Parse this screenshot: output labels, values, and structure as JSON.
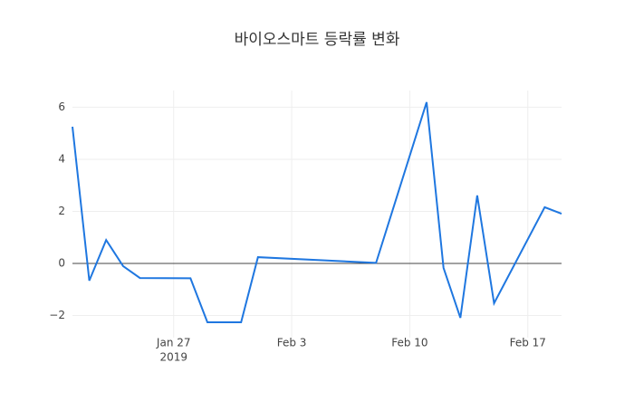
{
  "chart_data": {
    "type": "line",
    "title": "바이오스마트 등락률 변화",
    "x": [
      "2019-01-21",
      "2019-01-22",
      "2019-01-23",
      "2019-01-24",
      "2019-01-25",
      "2019-01-28",
      "2019-01-29",
      "2019-01-31",
      "2019-02-01",
      "2019-02-08",
      "2019-02-11",
      "2019-02-12",
      "2019-02-13",
      "2019-02-14",
      "2019-02-15",
      "2019-02-18",
      "2019-02-19"
    ],
    "series": [
      {
        "name": "등락률",
        "color": "#1f77e0",
        "values": [
          5.25,
          -0.66,
          0.9,
          -0.1,
          -0.56,
          -0.57,
          -2.26,
          -2.26,
          0.24,
          0.02,
          6.19,
          -0.17,
          -2.09,
          2.61,
          -1.53,
          2.16,
          1.91
        ]
      }
    ],
    "xlim": [
      "2019-01-21",
      "2019-02-19"
    ],
    "xticks": [
      {
        "value": "2019-01-27",
        "label": "Jan 27"
      },
      {
        "value": "2019-02-03",
        "label": "Feb 3"
      },
      {
        "value": "2019-02-10",
        "label": "Feb 10"
      },
      {
        "value": "2019-02-17",
        "label": "Feb 17"
      }
    ],
    "x_year_label": "2019",
    "ylim": [
      -2.85,
      6.64
    ],
    "yticks": [
      {
        "value": -2,
        "label": "−2"
      },
      0,
      2,
      4,
      6
    ],
    "grid": true,
    "zeroline": true
  }
}
